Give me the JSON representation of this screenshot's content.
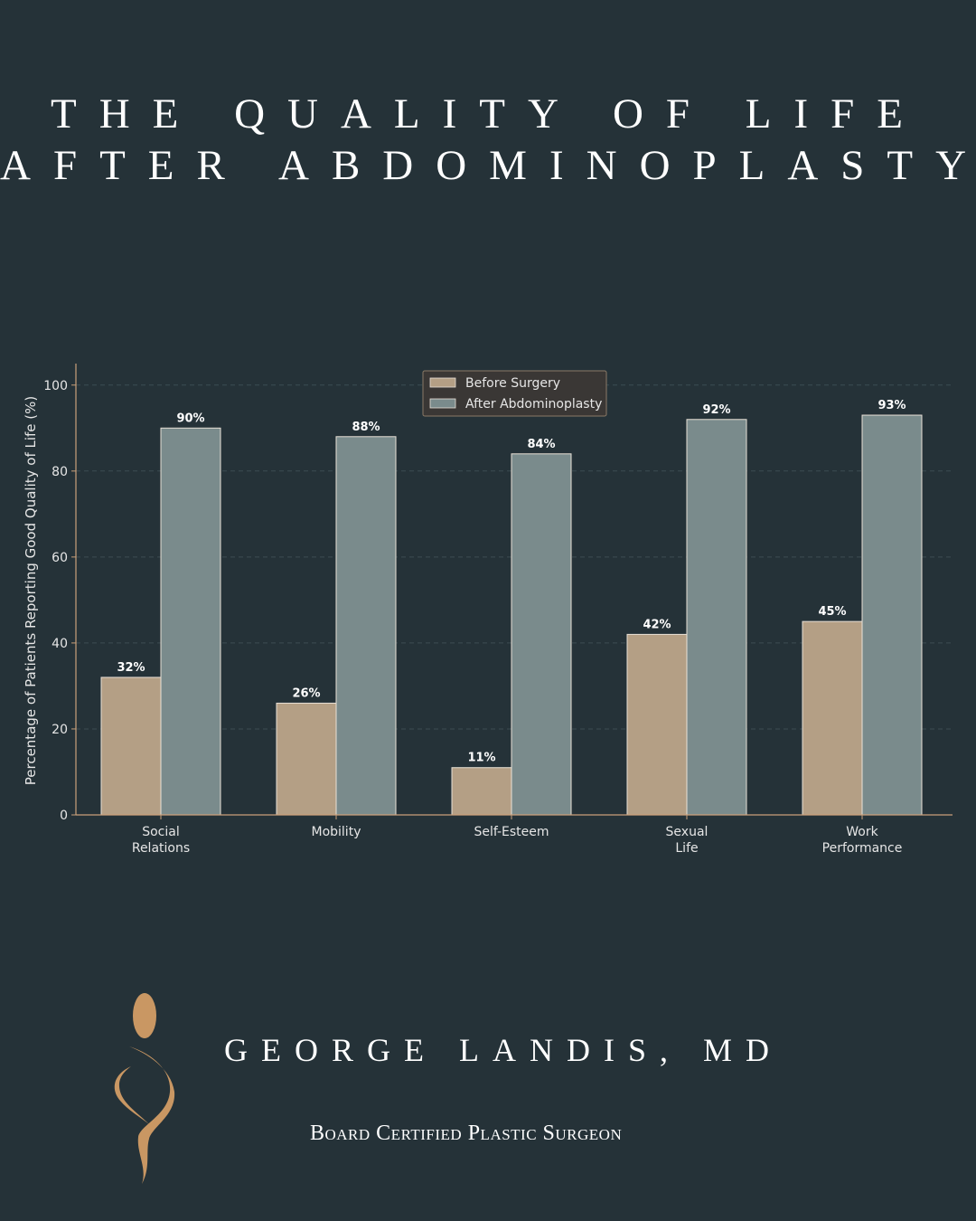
{
  "header": {
    "title_line1": "The Quality of Life",
    "title_line2": "After Abdominoplasty"
  },
  "brand": {
    "name": "George Landis, MD",
    "tagline": "Board Certified Plastic Surgeon",
    "logo_icon": "figure-silhouette-logo",
    "accent_color": "#c99763"
  },
  "chart_data": {
    "type": "bar",
    "categories": [
      [
        "Social",
        "Relations"
      ],
      [
        "Mobility"
      ],
      [
        "Self-Esteem"
      ],
      [
        "Sexual",
        "Life"
      ],
      [
        "Work",
        "Performance"
      ]
    ],
    "series": [
      {
        "name": "Before Surgery",
        "values": [
          32,
          26,
          11,
          42,
          45
        ],
        "labels": [
          "32%",
          "26%",
          "11%",
          "42%",
          "45%"
        ],
        "color": "#b49f85"
      },
      {
        "name": "After Abdominoplasty",
        "values": [
          90,
          88,
          84,
          92,
          93
        ],
        "labels": [
          "90%",
          "88%",
          "84%",
          "92%",
          "93%"
        ],
        "color": "#7a8b8c"
      }
    ],
    "ylabel": "Percentage of Patients Reporting Good Quality of Life (%)",
    "xlabel": "",
    "ylim": [
      0,
      105
    ],
    "yticks": [
      0,
      20,
      40,
      60,
      80,
      100
    ],
    "grid": "horizontal dashed",
    "legend_position": "top-center"
  }
}
